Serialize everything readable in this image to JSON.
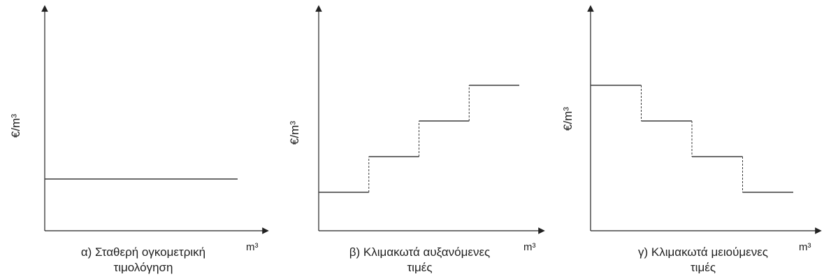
{
  "panels": [
    {
      "ylabel": "€/m³",
      "xlabel": "m³",
      "caption_line1": "α) Σταθερή ογκομετρική",
      "caption_line2": "τιμολόγηση",
      "levels": [
        1
      ]
    },
    {
      "ylabel": "€/m³",
      "xlabel": "m³",
      "caption_line1": "β) Κλιμακωτά αυξανόμενες",
      "caption_line2": "τιμές",
      "levels": [
        1,
        2,
        3,
        4
      ]
    },
    {
      "ylabel": "€/m³",
      "xlabel": "m³",
      "caption_line1": "γ) Κλιμακωτά μειούμενες",
      "caption_line2": "τιμές",
      "levels": [
        4,
        3,
        2,
        1
      ]
    }
  ],
  "colors": {
    "line": "#3a3a3a",
    "axis": "#222222"
  }
}
